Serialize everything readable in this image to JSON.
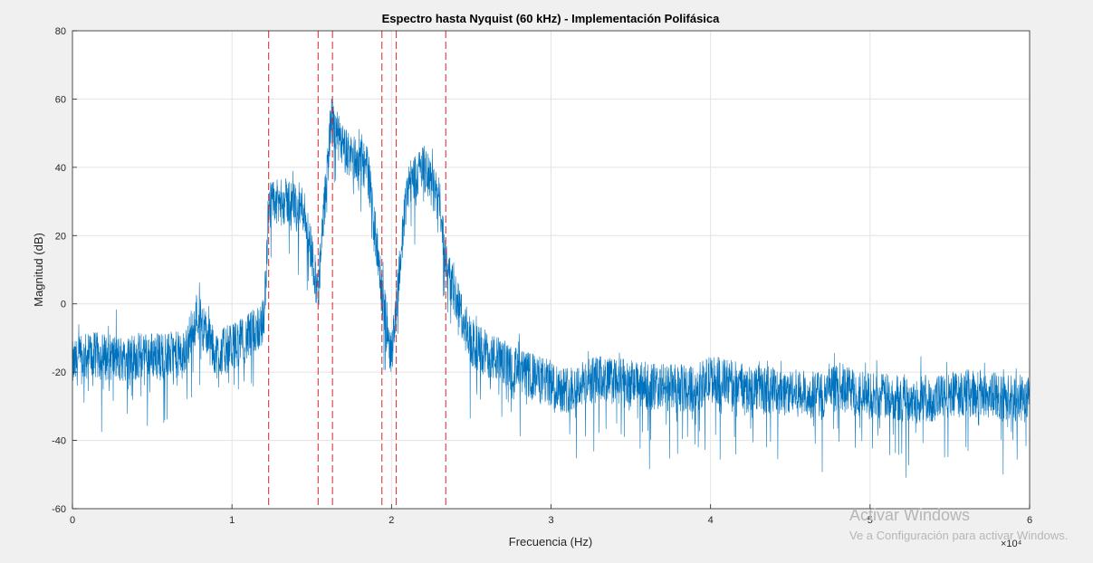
{
  "chart_data": {
    "type": "line",
    "title": "Espectro hasta Nyquist (60 kHz) - Implementación Polifásica",
    "xlabel": "Frecuencia (Hz)",
    "ylabel": "Magnitud (dB)",
    "xlim": [
      0,
      60000
    ],
    "ylim": [
      -60,
      80
    ],
    "x_ticks": [
      0,
      1,
      2,
      3,
      4,
      5,
      6
    ],
    "x_tick_labels": [
      "0",
      "1",
      "2",
      "3",
      "4",
      "5",
      "6"
    ],
    "x_exponent_label": "×10⁴",
    "y_ticks": [
      -60,
      -40,
      -20,
      0,
      20,
      40,
      60,
      80
    ],
    "y_tick_labels": [
      "-60",
      "-40",
      "-20",
      "0",
      "20",
      "40",
      "60",
      "80"
    ],
    "grid": true,
    "series": [
      {
        "color": "#0072bd",
        "envelope": {
          "x": [
            0,
            1000,
            3000,
            5000,
            7000,
            7800,
            9000,
            11000,
            12000,
            12300,
            13500,
            14500,
            15000,
            15400,
            16200,
            17000,
            18500,
            19400,
            20000,
            21000,
            22000,
            23000,
            23500,
            25000,
            28000,
            31000,
            33000,
            36000,
            39000,
            40000,
            42000,
            45000,
            47000,
            48000,
            50000,
            54000,
            56000,
            58000,
            60000
          ],
          "y": [
            -18,
            -15,
            -16,
            -15,
            -15,
            -3,
            -15,
            -10,
            -5,
            29,
            30,
            28,
            15,
            3,
            54,
            45,
            40,
            3,
            -15,
            35,
            40,
            30,
            10,
            -12,
            -20,
            -25,
            -22,
            -24,
            -25,
            -22,
            -24,
            -26,
            -27,
            -24,
            -27,
            -28,
            -26,
            -27,
            -28
          ]
        },
        "noise_spread_db": 14
      }
    ],
    "vertical_lines": {
      "color": "#d62728",
      "style": "dashed",
      "x": [
        12300,
        15400,
        16300,
        19400,
        20300,
        23400
      ]
    }
  },
  "watermark": {
    "title": "Activar Windows",
    "subtitle": "Ve a Configuración para activar Windows."
  }
}
